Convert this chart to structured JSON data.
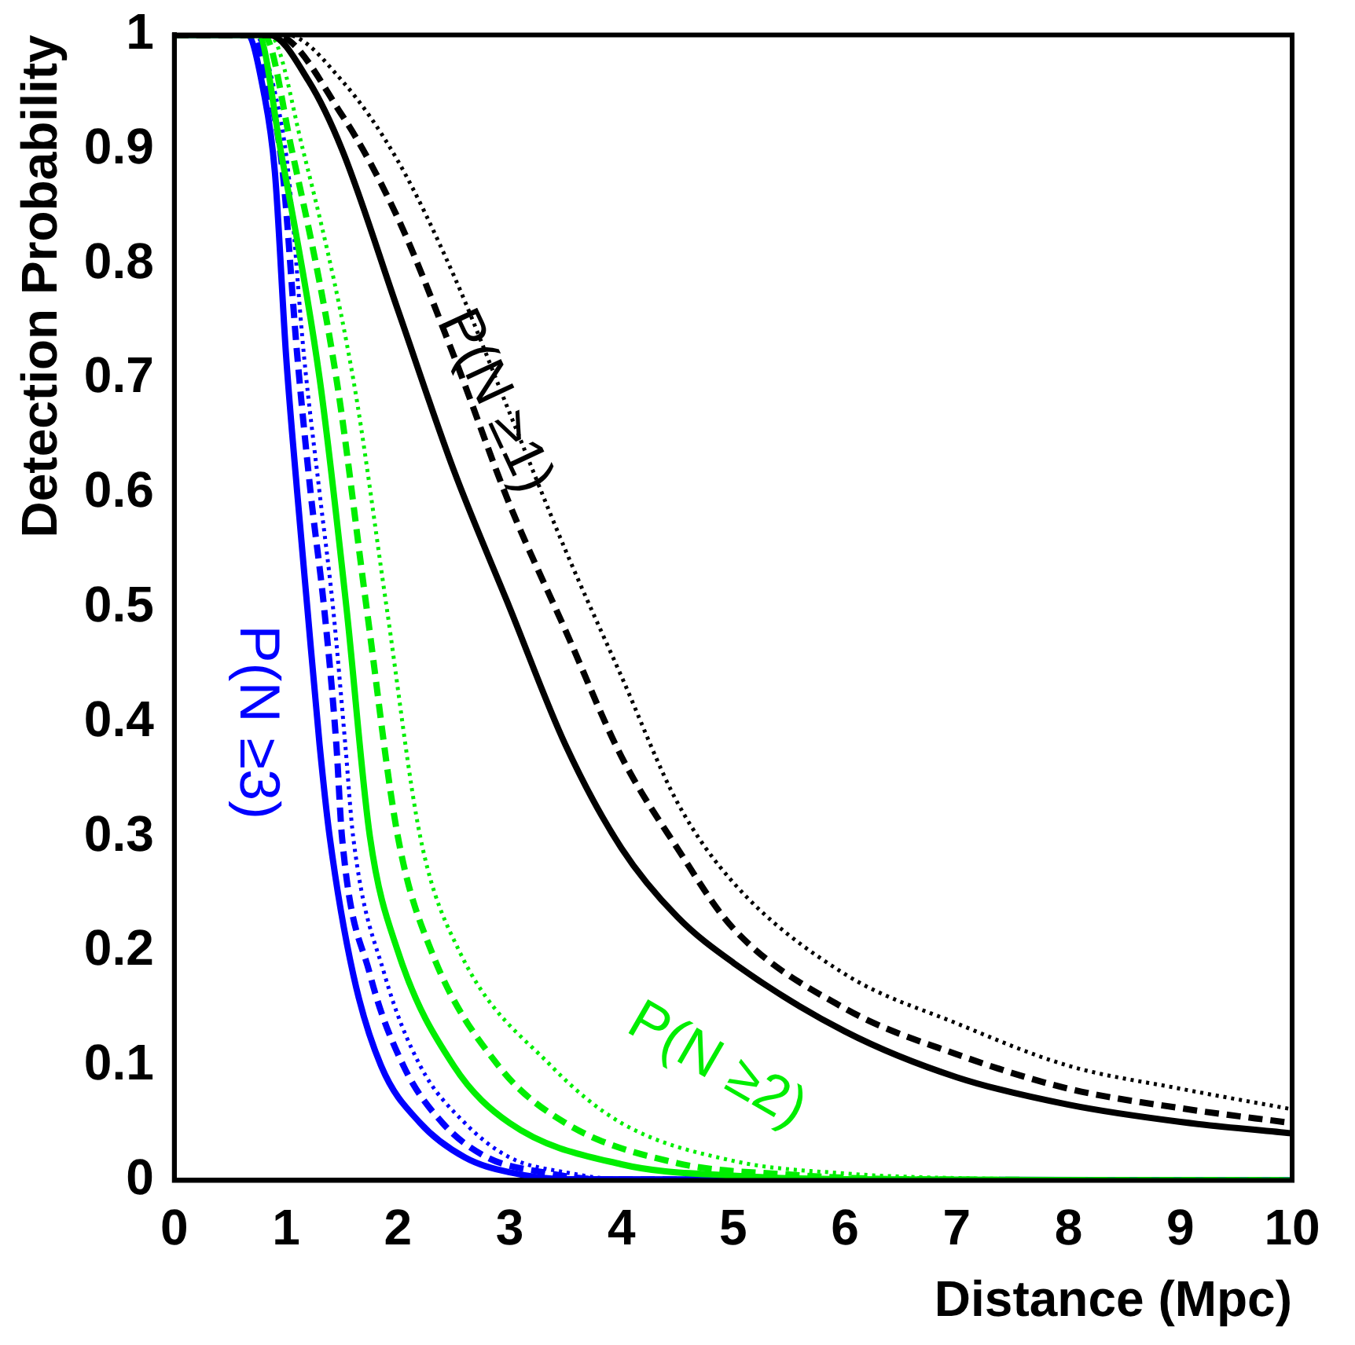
{
  "chart_data": {
    "type": "line",
    "xlabel": "Distance (Mpc)",
    "ylabel": "Detection Probability",
    "xlim": [
      0,
      10
    ],
    "ylim": [
      0,
      1
    ],
    "xticks": [
      0,
      1,
      2,
      3,
      4,
      5,
      6,
      7,
      8,
      9,
      10
    ],
    "yticks": [
      0,
      0.1,
      0.2,
      0.3,
      0.4,
      0.5,
      0.6,
      0.7,
      0.8,
      0.9,
      1
    ],
    "grid": false,
    "legend": false,
    "marker": "none",
    "series": [
      {
        "color": "#000000",
        "line_style": "solid",
        "x": [
          0,
          0.85,
          1.2,
          1.5,
          2,
          2.5,
          3,
          3.5,
          4,
          4.5,
          5,
          6,
          7,
          8,
          9,
          10
        ],
        "values": [
          1,
          1,
          0.96,
          0.9,
          0.76,
          0.62,
          0.5,
          0.38,
          0.29,
          0.23,
          0.19,
          0.13,
          0.09,
          0.066,
          0.051,
          0.041
        ]
      },
      {
        "color": "#000000",
        "line_style": "dashed",
        "x": [
          0,
          0.9,
          1.5,
          2,
          2.5,
          3,
          3.5,
          4,
          4.5,
          5,
          6,
          7,
          8,
          9,
          10
        ],
        "values": [
          1,
          1,
          0.93,
          0.84,
          0.72,
          0.59,
          0.48,
          0.37,
          0.29,
          0.22,
          0.15,
          0.11,
          0.08,
          0.063,
          0.05
        ]
      },
      {
        "color": "#000000",
        "line_style": "dotted",
        "x": [
          0,
          1,
          1.5,
          2,
          2.5,
          3,
          3.5,
          4,
          4.5,
          5,
          6,
          7,
          8,
          9,
          10
        ],
        "values": [
          1,
          1,
          0.96,
          0.89,
          0.79,
          0.67,
          0.55,
          0.44,
          0.33,
          0.26,
          0.18,
          0.137,
          0.1,
          0.08,
          0.062
        ]
      },
      {
        "color": "#00ee00",
        "line_style": "solid",
        "x": [
          0,
          0.75,
          0.95,
          1.3,
          1.54,
          1.75,
          2,
          2.5,
          3,
          4,
          5,
          6,
          10
        ],
        "values": [
          1,
          1,
          0.9,
          0.7,
          0.5,
          0.3,
          0.2,
          0.1,
          0.05,
          0.014,
          0.004,
          0.001,
          0
        ]
      },
      {
        "color": "#00ee00",
        "line_style": "dashed",
        "x": [
          0,
          0.8,
          1.05,
          1.45,
          1.72,
          2,
          2.3,
          2.9,
          3.5,
          4.5,
          5.5,
          6.5,
          10
        ],
        "values": [
          1,
          1,
          0.9,
          0.7,
          0.5,
          0.3,
          0.2,
          0.1,
          0.05,
          0.015,
          0.005,
          0.001,
          0
        ]
      },
      {
        "color": "#00ee00",
        "line_style": "dotted",
        "x": [
          0,
          0.85,
          1.15,
          1.6,
          1.9,
          2.2,
          2.55,
          3.37,
          4,
          5,
          6,
          7,
          10
        ],
        "values": [
          1,
          1,
          0.9,
          0.7,
          0.5,
          0.3,
          0.2,
          0.1,
          0.05,
          0.017,
          0.006,
          0.002,
          0
        ]
      },
      {
        "color": "#0000ff",
        "line_style": "solid",
        "x": [
          0,
          0.65,
          0.8,
          0.9,
          1,
          1.1,
          1.19,
          1.3,
          1.39,
          1.6,
          1.85,
          2.2,
          2.6,
          3,
          3.5,
          10
        ],
        "values": [
          1,
          1,
          0.95,
          0.88,
          0.72,
          0.6,
          0.5,
          0.38,
          0.3,
          0.18,
          0.1,
          0.05,
          0.02,
          0.007,
          0.001,
          0
        ]
      },
      {
        "color": "#0000ff",
        "line_style": "dashed",
        "x": [
          0,
          0.7,
          0.85,
          0.97,
          1.1,
          1.22,
          1.34,
          1.45,
          1.5,
          1.75,
          2.05,
          2.4,
          2.8,
          3.3,
          3.8,
          10
        ],
        "values": [
          1,
          1,
          0.95,
          0.88,
          0.72,
          0.6,
          0.5,
          0.38,
          0.3,
          0.18,
          0.1,
          0.05,
          0.02,
          0.007,
          0.001,
          0
        ]
      },
      {
        "color": "#0000ff",
        "line_style": "dotted",
        "x": [
          0,
          0.72,
          0.9,
          1.02,
          1.16,
          1.3,
          1.42,
          1.53,
          1.6,
          1.88,
          2.2,
          2.6,
          3,
          3.5,
          4,
          10
        ],
        "values": [
          1,
          1,
          0.95,
          0.88,
          0.72,
          0.6,
          0.5,
          0.38,
          0.3,
          0.18,
          0.1,
          0.05,
          0.02,
          0.007,
          0.001,
          0
        ]
      }
    ],
    "annotations": [
      "P(N ≥1)",
      "P(N ≥3)",
      "P(N ≥2)"
    ]
  }
}
